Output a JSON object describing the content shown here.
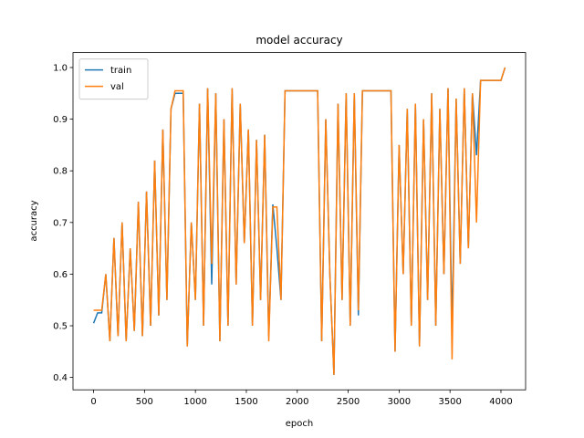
{
  "chart_data": {
    "type": "line",
    "title": "model accuracy",
    "xlabel": "epoch",
    "ylabel": "accuracy",
    "x": [
      0,
      40,
      80,
      120,
      160,
      200,
      240,
      280,
      320,
      360,
      400,
      440,
      480,
      520,
      560,
      600,
      640,
      680,
      720,
      760,
      800,
      840,
      880,
      920,
      960,
      1000,
      1040,
      1080,
      1120,
      1160,
      1200,
      1240,
      1280,
      1320,
      1360,
      1400,
      1440,
      1480,
      1520,
      1560,
      1600,
      1640,
      1680,
      1720,
      1760,
      1800,
      1840,
      1880,
      1920,
      1960,
      2000,
      2040,
      2080,
      2120,
      2160,
      2200,
      2240,
      2280,
      2320,
      2360,
      2400,
      2440,
      2480,
      2520,
      2560,
      2600,
      2640,
      2680,
      2720,
      2760,
      2800,
      2840,
      2880,
      2920,
      2960,
      3000,
      3040,
      3080,
      3120,
      3160,
      3200,
      3240,
      3280,
      3320,
      3360,
      3400,
      3440,
      3480,
      3520,
      3560,
      3600,
      3640,
      3680,
      3720,
      3760,
      3800,
      3840,
      3880,
      3920,
      3960,
      4000,
      4040
    ],
    "series": [
      {
        "name": "train",
        "color": "#1f77b4",
        "values": [
          0.505,
          0.525,
          0.525,
          0.6,
          0.47,
          0.67,
          0.48,
          0.7,
          0.47,
          0.65,
          0.49,
          0.74,
          0.48,
          0.76,
          0.5,
          0.82,
          0.52,
          0.88,
          0.55,
          0.92,
          0.95,
          0.95,
          0.95,
          0.46,
          0.7,
          0.55,
          0.93,
          0.5,
          0.96,
          0.58,
          0.95,
          0.47,
          0.9,
          0.5,
          0.96,
          0.58,
          0.93,
          0.66,
          0.88,
          0.5,
          0.86,
          0.55,
          0.87,
          0.48,
          0.735,
          0.65,
          0.55,
          0.955,
          0.955,
          0.955,
          0.955,
          0.955,
          0.955,
          0.955,
          0.955,
          0.955,
          0.47,
          0.9,
          0.6,
          0.405,
          0.93,
          0.55,
          0.95,
          0.5,
          0.95,
          0.52,
          0.955,
          0.955,
          0.955,
          0.955,
          0.955,
          0.955,
          0.955,
          0.955,
          0.45,
          0.85,
          0.6,
          0.92,
          0.5,
          0.93,
          0.46,
          0.9,
          0.55,
          0.95,
          0.5,
          0.92,
          0.6,
          0.96,
          0.49,
          0.94,
          0.62,
          0.96,
          0.65,
          0.95,
          0.83,
          0.975,
          0.975,
          0.975,
          0.975,
          0.975,
          0.975,
          1.0
        ]
      },
      {
        "name": "val",
        "color": "#ff7f0e",
        "values": [
          0.53,
          0.53,
          0.53,
          0.6,
          0.47,
          0.67,
          0.48,
          0.7,
          0.47,
          0.65,
          0.49,
          0.74,
          0.48,
          0.76,
          0.5,
          0.82,
          0.52,
          0.88,
          0.55,
          0.92,
          0.955,
          0.955,
          0.955,
          0.46,
          0.7,
          0.55,
          0.93,
          0.5,
          0.96,
          0.62,
          0.95,
          0.47,
          0.9,
          0.5,
          0.96,
          0.58,
          0.93,
          0.66,
          0.88,
          0.5,
          0.86,
          0.55,
          0.87,
          0.47,
          0.73,
          0.73,
          0.55,
          0.955,
          0.955,
          0.955,
          0.955,
          0.955,
          0.955,
          0.955,
          0.955,
          0.955,
          0.47,
          0.9,
          0.6,
          0.405,
          0.93,
          0.55,
          0.95,
          0.5,
          0.95,
          0.53,
          0.955,
          0.955,
          0.955,
          0.955,
          0.955,
          0.955,
          0.955,
          0.955,
          0.45,
          0.85,
          0.6,
          0.92,
          0.5,
          0.93,
          0.46,
          0.9,
          0.55,
          0.95,
          0.5,
          0.92,
          0.6,
          0.96,
          0.435,
          0.94,
          0.62,
          0.96,
          0.65,
          0.95,
          0.7,
          0.975,
          0.975,
          0.975,
          0.975,
          0.975,
          0.975,
          1.0
        ]
      }
    ],
    "xlim": [
      -202,
      4242
    ],
    "xticks": [
      0,
      500,
      1000,
      1500,
      2000,
      2500,
      3000,
      3500,
      4000
    ],
    "ylim": [
      0.376,
      1.029
    ],
    "yticks": [
      0.4,
      0.5,
      0.6,
      0.7,
      0.8,
      0.9,
      {
        "value": 1,
        "label": "1.0"
      }
    ],
    "legend": "upper left"
  }
}
